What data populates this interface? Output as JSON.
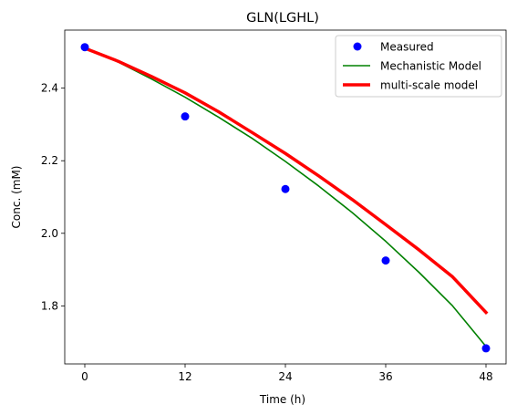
{
  "chart_data": {
    "type": "line",
    "title": "GLN(LGHL)",
    "xlabel": "Time (h)",
    "ylabel": "Conc. (mM)",
    "xlim": [
      -2.4,
      50.4
    ],
    "ylim": [
      1.64,
      2.56
    ],
    "xticks": [
      0,
      12,
      24,
      36,
      48
    ],
    "yticks": [
      1.8,
      2.0,
      2.2,
      2.4
    ],
    "ytick_labels": [
      "1.8",
      "2.0",
      "2.2",
      "2.4"
    ],
    "grid": false,
    "legend_position": "top-right",
    "series": [
      {
        "name": "Measured",
        "kind": "scatter",
        "color": "#0000ff",
        "x": [
          0,
          12,
          24,
          36,
          48
        ],
        "y": [
          2.513,
          2.322,
          2.122,
          1.925,
          1.683
        ]
      },
      {
        "name": "Mechanistic Model",
        "kind": "line",
        "color": "#008000",
        "x": [
          0,
          4,
          8,
          12,
          16,
          20,
          24,
          28,
          32,
          36,
          40,
          44,
          48
        ],
        "y": [
          2.513,
          2.472,
          2.425,
          2.375,
          2.32,
          2.262,
          2.198,
          2.13,
          2.057,
          1.978,
          1.892,
          1.8,
          1.688
        ]
      },
      {
        "name": "multi-scale model",
        "kind": "line",
        "color": "#ff0000",
        "x": [
          0,
          4,
          8,
          12,
          16,
          20,
          24,
          28,
          32,
          36,
          40,
          44,
          48
        ],
        "y": [
          2.51,
          2.474,
          2.432,
          2.387,
          2.335,
          2.278,
          2.22,
          2.158,
          2.093,
          2.024,
          1.954,
          1.88,
          1.782
        ]
      }
    ]
  }
}
